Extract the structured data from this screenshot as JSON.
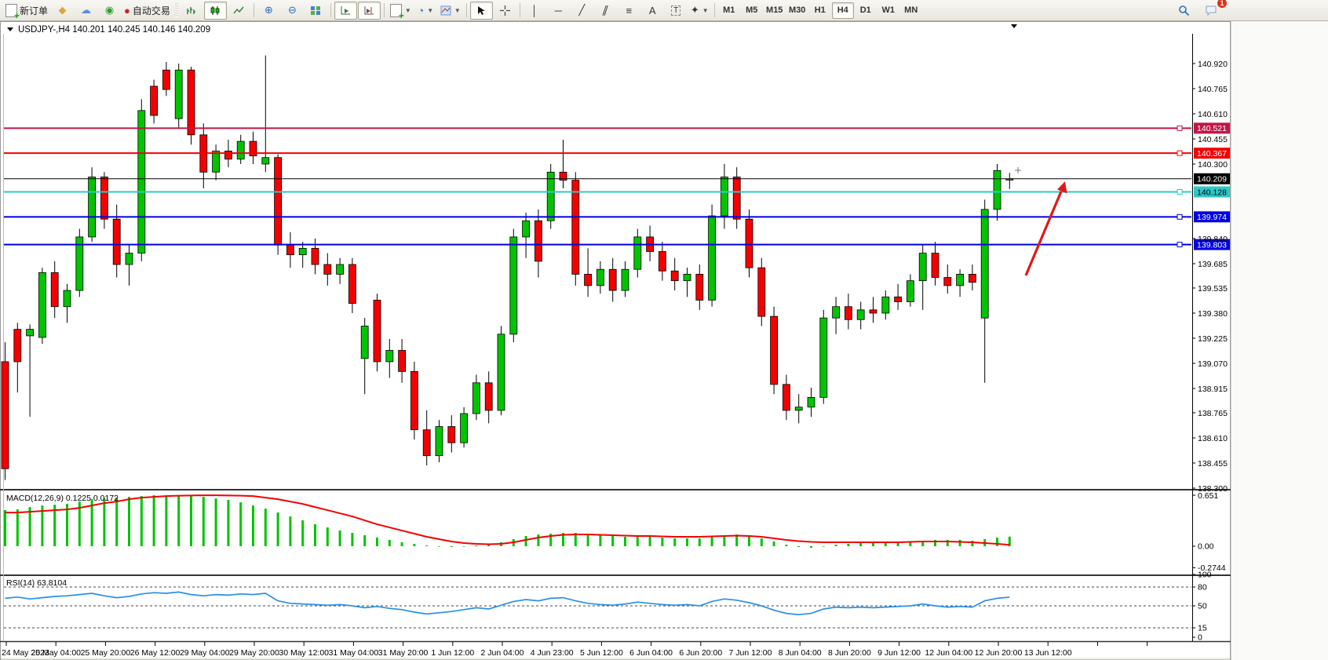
{
  "toolbar": {
    "new_order_label": "新订单",
    "autotrade_label": "自动交易",
    "timeframes": [
      "M1",
      "M5",
      "M15",
      "M30",
      "H1",
      "H4",
      "D1",
      "W1",
      "MN"
    ],
    "active_timeframe": "H4",
    "notification_badge": "1",
    "icon_names": [
      "new-order",
      "paint-bucket",
      "profile",
      "signal",
      "auto-trading",
      "bar-chart",
      "candlestick-chart",
      "line-chart",
      "zoom-in",
      "zoom-out",
      "tile-windows",
      "auto-scroll",
      "chart-shift",
      "add-indicator",
      "period",
      "template",
      "cursor",
      "crosshair",
      "vertical-line",
      "horizontal-line",
      "trendline",
      "equidistant-channel",
      "fibonacci",
      "text",
      "text-label",
      "arrows",
      "search",
      "chat"
    ]
  },
  "chart": {
    "symbol": "USDJPY-,H4",
    "ohlc_display": "140.201 140.245 140.146 140.209"
  },
  "chart_data": {
    "type": "candlestick",
    "symbol_timeframe": "USDJPY-,H4",
    "current_bar": {
      "open": 140.201,
      "high": 140.245,
      "low": 140.146,
      "close": 140.209
    },
    "colors": {
      "up": "#00c400",
      "down": "#f40000",
      "wick": "#000000",
      "macd_hist": "#00c400",
      "macd_signal": "#f40000",
      "rsi_line": "#2a8fe8",
      "arrow": "#e01818"
    },
    "price_axis_ticks": [
      140.92,
      140.765,
      140.61,
      140.455,
      140.3,
      139.84,
      139.685,
      139.535,
      139.38,
      139.225,
      139.07,
      138.915,
      138.765,
      138.61,
      138.455,
      138.3
    ],
    "hlines": [
      {
        "price": 140.521,
        "label": "140.521",
        "color": "#c21747",
        "text": "#ffffff",
        "width": 2
      },
      {
        "price": 140.367,
        "label": "140.367",
        "color": "#f20000",
        "text": "#ffffff",
        "width": 2
      },
      {
        "price": 140.209,
        "label": "140.209",
        "color": "#000000",
        "text": "#ffffff",
        "width": 1
      },
      {
        "price": 140.128,
        "label": "140.128",
        "color": "#2ec8c8",
        "text": "#000000",
        "width": 2
      },
      {
        "price": 139.974,
        "label": "139.974",
        "color": "#0000e0",
        "text": "#ffffff",
        "width": 2
      },
      {
        "price": 139.803,
        "label": "139.803",
        "color": "#0000e0",
        "text": "#ffffff",
        "width": 2
      }
    ],
    "x_labels": [
      "24 May 2023",
      "25 May 04:00",
      "25 May 20:00",
      "26 May 12:00",
      "29 May 04:00",
      "29 May 20:00",
      "30 May 12:00",
      "31 May 04:00",
      "31 May 20:00",
      "1 Jun 12:00",
      "2 Jun 04:00",
      "4 Jun 23:00",
      "5 Jun 12:00",
      "6 Jun 04:00",
      "6 Jun 20:00",
      "7 Jun 12:00",
      "8 Jun 04:00",
      "8 Jun 20:00",
      "9 Jun 12:00",
      "12 Jun 04:00",
      "12 Jun 20:00",
      "13 Jun 12:00"
    ],
    "candles": [
      [
        139.08,
        139.2,
        138.35,
        138.42
      ],
      [
        139.28,
        139.32,
        138.89,
        139.08
      ],
      [
        139.24,
        139.31,
        138.74,
        139.28
      ],
      [
        139.23,
        139.66,
        139.19,
        139.63
      ],
      [
        139.63,
        139.7,
        139.35,
        139.42
      ],
      [
        139.42,
        139.56,
        139.32,
        139.52
      ],
      [
        139.52,
        139.9,
        139.48,
        139.85
      ],
      [
        139.85,
        140.28,
        139.82,
        140.22
      ],
      [
        140.22,
        140.25,
        139.9,
        139.96
      ],
      [
        139.96,
        140.05,
        139.6,
        139.68
      ],
      [
        139.68,
        139.8,
        139.55,
        139.75
      ],
      [
        139.75,
        140.7,
        139.7,
        140.63
      ],
      [
        140.78,
        140.82,
        140.55,
        140.6
      ],
      [
        140.88,
        140.93,
        140.72,
        140.76
      ],
      [
        140.58,
        140.92,
        140.52,
        140.88
      ],
      [
        140.88,
        140.9,
        140.42,
        140.48
      ],
      [
        140.48,
        140.55,
        140.15,
        140.25
      ],
      [
        140.25,
        140.42,
        140.2,
        140.38
      ],
      [
        140.38,
        140.45,
        140.28,
        140.33
      ],
      [
        140.33,
        140.48,
        140.3,
        140.44
      ],
      [
        140.44,
        140.5,
        140.3,
        140.35
      ],
      [
        140.3,
        140.97,
        140.25,
        140.34
      ],
      [
        140.34,
        140.36,
        139.74,
        139.8
      ],
      [
        139.8,
        139.88,
        139.66,
        139.74
      ],
      [
        139.74,
        139.82,
        139.66,
        139.78
      ],
      [
        139.78,
        139.84,
        139.62,
        139.68
      ],
      [
        139.68,
        139.75,
        139.55,
        139.62
      ],
      [
        139.62,
        139.72,
        139.56,
        139.68
      ],
      [
        139.68,
        139.72,
        139.38,
        139.44
      ],
      [
        139.1,
        139.35,
        138.88,
        139.3
      ],
      [
        139.46,
        139.5,
        139.02,
        139.08
      ],
      [
        139.08,
        139.22,
        138.98,
        139.15
      ],
      [
        139.15,
        139.22,
        138.95,
        139.02
      ],
      [
        139.02,
        139.08,
        138.6,
        138.66
      ],
      [
        138.66,
        138.78,
        138.44,
        138.5
      ],
      [
        138.5,
        138.72,
        138.46,
        138.68
      ],
      [
        138.68,
        138.75,
        138.52,
        138.58
      ],
      [
        138.58,
        138.8,
        138.55,
        138.76
      ],
      [
        138.76,
        139.0,
        138.72,
        138.95
      ],
      [
        138.95,
        139.02,
        138.7,
        138.78
      ],
      [
        138.78,
        139.3,
        138.75,
        139.25
      ],
      [
        139.25,
        139.9,
        139.2,
        139.85
      ],
      [
        139.85,
        140.0,
        139.72,
        139.95
      ],
      [
        139.95,
        140.02,
        139.6,
        139.7
      ],
      [
        139.95,
        140.3,
        139.9,
        140.25
      ],
      [
        140.25,
        140.45,
        140.15,
        140.2
      ],
      [
        140.2,
        140.25,
        139.55,
        139.62
      ],
      [
        139.62,
        139.78,
        139.48,
        139.55
      ],
      [
        139.55,
        139.7,
        139.5,
        139.65
      ],
      [
        139.65,
        139.72,
        139.45,
        139.52
      ],
      [
        139.52,
        139.7,
        139.48,
        139.65
      ],
      [
        139.65,
        139.9,
        139.6,
        139.85
      ],
      [
        139.85,
        139.92,
        139.7,
        139.76
      ],
      [
        139.76,
        139.82,
        139.58,
        139.64
      ],
      [
        139.64,
        139.72,
        139.52,
        139.58
      ],
      [
        139.58,
        139.66,
        139.48,
        139.62
      ],
      [
        139.62,
        139.68,
        139.4,
        139.46
      ],
      [
        139.46,
        140.05,
        139.42,
        139.98
      ],
      [
        139.98,
        140.3,
        139.9,
        140.22
      ],
      [
        140.22,
        140.28,
        139.9,
        139.96
      ],
      [
        139.96,
        140.02,
        139.6,
        139.66
      ],
      [
        139.66,
        139.72,
        139.3,
        139.36
      ],
      [
        139.36,
        139.42,
        138.88,
        138.94
      ],
      [
        138.94,
        139.0,
        138.72,
        138.78
      ],
      [
        138.78,
        138.88,
        138.7,
        138.8
      ],
      [
        138.8,
        138.92,
        138.74,
        138.86
      ],
      [
        138.86,
        139.4,
        138.82,
        139.35
      ],
      [
        139.35,
        139.48,
        139.25,
        139.42
      ],
      [
        139.42,
        139.5,
        139.28,
        139.34
      ],
      [
        139.34,
        139.45,
        139.28,
        139.4
      ],
      [
        139.4,
        139.48,
        139.32,
        139.38
      ],
      [
        139.38,
        139.52,
        139.34,
        139.48
      ],
      [
        139.48,
        139.56,
        139.4,
        139.45
      ],
      [
        139.45,
        139.62,
        139.42,
        139.58
      ],
      [
        139.58,
        139.8,
        139.4,
        139.75
      ],
      [
        139.75,
        139.82,
        139.55,
        139.6
      ],
      [
        139.6,
        139.68,
        139.5,
        139.55
      ],
      [
        139.55,
        139.65,
        139.48,
        139.62
      ],
      [
        139.62,
        139.68,
        139.52,
        139.57
      ],
      [
        139.35,
        140.08,
        138.95,
        140.02
      ],
      [
        140.02,
        140.3,
        139.95,
        140.26
      ],
      [
        140.201,
        140.245,
        140.146,
        140.209
      ]
    ],
    "macd": {
      "label": "MACD(12,26,9) 0.1225 0.0172",
      "axis_labels": [
        "0.651",
        "0.00",
        "-0.2744"
      ],
      "axis_values": [
        0.651,
        0.0,
        -0.2744
      ],
      "hist": [
        0.46,
        0.47,
        0.5,
        0.52,
        0.53,
        0.54,
        0.57,
        0.6,
        0.61,
        0.62,
        0.63,
        0.64,
        0.651,
        0.65,
        0.645,
        0.64,
        0.63,
        0.61,
        0.59,
        0.56,
        0.52,
        0.48,
        0.43,
        0.38,
        0.33,
        0.28,
        0.24,
        0.2,
        0.17,
        0.14,
        0.11,
        0.08,
        0.05,
        0.03,
        0.01,
        0.0,
        -0.01,
        0.0,
        0.01,
        0.02,
        0.05,
        0.09,
        0.13,
        0.15,
        0.16,
        0.17,
        0.17,
        0.16,
        0.14,
        0.13,
        0.12,
        0.12,
        0.12,
        0.11,
        0.1,
        0.1,
        0.1,
        0.12,
        0.14,
        0.15,
        0.13,
        0.1,
        0.06,
        0.02,
        -0.01,
        -0.02,
        0.0,
        0.02,
        0.03,
        0.04,
        0.04,
        0.05,
        0.05,
        0.06,
        0.07,
        0.08,
        0.08,
        0.08,
        0.07,
        0.09,
        0.11,
        0.1225
      ],
      "signal": [
        0.43,
        0.43,
        0.44,
        0.45,
        0.46,
        0.47,
        0.49,
        0.52,
        0.55,
        0.57,
        0.6,
        0.62,
        0.63,
        0.64,
        0.645,
        0.648,
        0.65,
        0.65,
        0.648,
        0.645,
        0.64,
        0.62,
        0.6,
        0.57,
        0.54,
        0.5,
        0.46,
        0.42,
        0.38,
        0.33,
        0.28,
        0.24,
        0.2,
        0.16,
        0.12,
        0.09,
        0.06,
        0.04,
        0.03,
        0.025,
        0.03,
        0.05,
        0.08,
        0.11,
        0.13,
        0.145,
        0.15,
        0.15,
        0.145,
        0.14,
        0.135,
        0.13,
        0.13,
        0.125,
        0.12,
        0.12,
        0.12,
        0.125,
        0.13,
        0.135,
        0.13,
        0.12,
        0.1,
        0.08,
        0.065,
        0.055,
        0.05,
        0.05,
        0.05,
        0.05,
        0.05,
        0.05,
        0.05,
        0.055,
        0.06,
        0.06,
        0.06,
        0.055,
        0.05,
        0.04,
        0.03,
        0.017
      ]
    },
    "rsi": {
      "label": "RSI(14) 63.8104",
      "axis_labels": [
        "100",
        "80",
        "50",
        "15",
        "0"
      ],
      "levels": [
        80,
        50,
        15
      ],
      "values": [
        62,
        64,
        61,
        63,
        65,
        66,
        68,
        70,
        66,
        63,
        65,
        69,
        71,
        70,
        72,
        68,
        66,
        68,
        67,
        69,
        68,
        70,
        58,
        54,
        53,
        52,
        51,
        52,
        50,
        47,
        49,
        46,
        44,
        40,
        37,
        39,
        41,
        44,
        47,
        45,
        51,
        57,
        60,
        58,
        62,
        63,
        58,
        54,
        52,
        51,
        53,
        56,
        54,
        52,
        51,
        52,
        50,
        57,
        61,
        59,
        55,
        50,
        43,
        38,
        36,
        38,
        45,
        48,
        47,
        48,
        47,
        48,
        49,
        50,
        53,
        50,
        48,
        49,
        48,
        58,
        62,
        63.81
      ]
    },
    "arrow_annotation": {
      "from_price": 139.55,
      "to_price": 140.12,
      "note": "red up arrow in right margin"
    }
  }
}
